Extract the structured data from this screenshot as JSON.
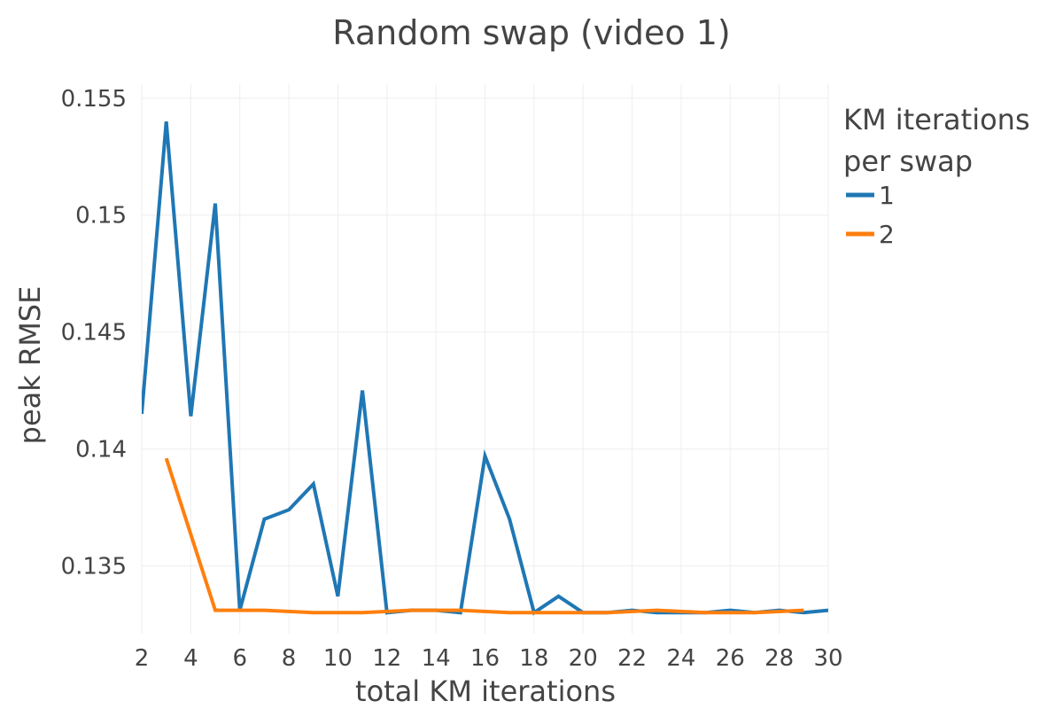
{
  "chart_data": {
    "type": "line",
    "title": "Random swap (video 1)",
    "xlabel": "total KM iterations",
    "ylabel": "peak RMSE",
    "xlim": [
      2,
      30
    ],
    "ylim": [
      0.1321,
      0.1556
    ],
    "x_ticks": [
      2,
      4,
      6,
      8,
      10,
      12,
      14,
      16,
      18,
      20,
      22,
      24,
      26,
      28,
      30
    ],
    "y_ticks": [
      0.135,
      0.14,
      0.145,
      0.15,
      0.155
    ],
    "y_tick_labels": [
      "0.135",
      "0.14",
      "0.145",
      "0.15",
      "0.155"
    ],
    "grid": true,
    "legend_title_lines": [
      "KM iterations",
      "per swap"
    ],
    "legend_position": "top-right",
    "series": [
      {
        "name": "1",
        "color": "#1f77b4",
        "x": [
          2,
          3,
          4,
          5,
          6,
          7,
          8,
          9,
          10,
          11,
          12,
          13,
          14,
          15,
          16,
          17,
          18,
          19,
          20,
          21,
          22,
          23,
          24,
          25,
          26,
          27,
          28,
          29,
          30
        ],
        "y": [
          0.1415,
          0.154,
          0.1414,
          0.1505,
          0.1331,
          0.137,
          0.1374,
          0.1385,
          0.1337,
          0.1425,
          0.133,
          0.1331,
          0.1331,
          0.133,
          0.1397,
          0.137,
          0.133,
          0.1337,
          0.133,
          0.133,
          0.1331,
          0.133,
          0.133,
          0.133,
          0.1331,
          0.133,
          0.1331,
          0.133,
          0.1331
        ]
      },
      {
        "name": "2",
        "color": "#ff7f0e",
        "x": [
          3,
          5,
          7,
          9,
          11,
          13,
          15,
          17,
          19,
          21,
          23,
          25,
          27,
          29
        ],
        "y": [
          0.1396,
          0.1331,
          0.1331,
          0.133,
          0.133,
          0.1331,
          0.1331,
          0.133,
          0.133,
          0.133,
          0.1331,
          0.133,
          0.133,
          0.1331
        ]
      }
    ]
  }
}
